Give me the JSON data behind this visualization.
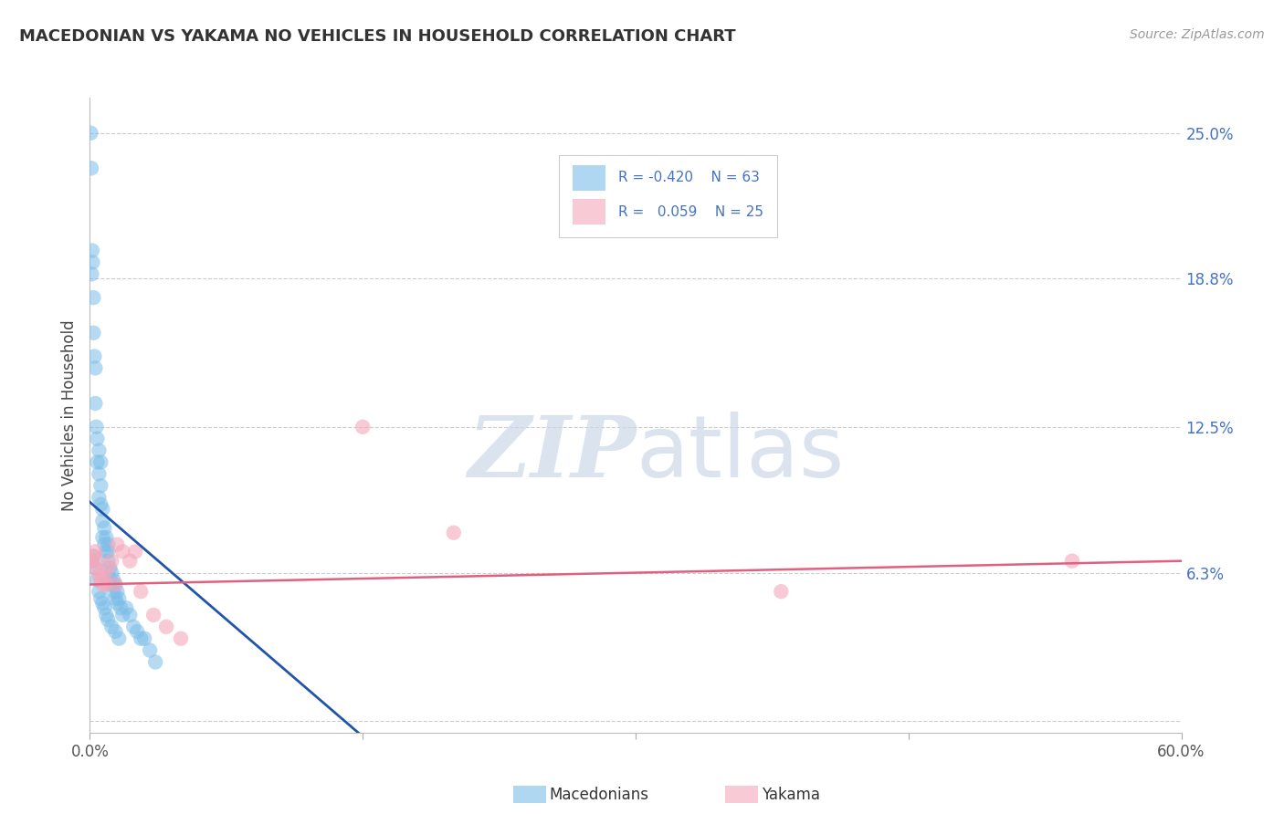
{
  "title": "MACEDONIAN VS YAKAMA NO VEHICLES IN HOUSEHOLD CORRELATION CHART",
  "source": "Source: ZipAtlas.com",
  "ylabel": "No Vehicles in Household",
  "xlim": [
    0.0,
    0.6
  ],
  "ylim": [
    -0.005,
    0.265
  ],
  "yticks": [
    0.0,
    0.063,
    0.125,
    0.188,
    0.25
  ],
  "ytick_labels": [
    "",
    "6.3%",
    "12.5%",
    "18.8%",
    "25.0%"
  ],
  "xticks": [
    0.0,
    0.15,
    0.3,
    0.45,
    0.6
  ],
  "xtick_labels": [
    "0.0%",
    "",
    "",
    "",
    "60.0%"
  ],
  "blue_color": "#7bbde8",
  "pink_color": "#f4a8bc",
  "blue_line_color": "#2255aa",
  "pink_line_color": "#e06080",
  "label_color": "#4472c4",
  "watermark_color": "#ccd8e8",
  "blue_x": [
    0.0005,
    0.0008,
    0.001,
    0.0012,
    0.0015,
    0.002,
    0.002,
    0.0025,
    0.003,
    0.003,
    0.0035,
    0.004,
    0.004,
    0.005,
    0.005,
    0.005,
    0.006,
    0.006,
    0.006,
    0.007,
    0.007,
    0.007,
    0.008,
    0.008,
    0.009,
    0.009,
    0.01,
    0.01,
    0.01,
    0.011,
    0.011,
    0.012,
    0.012,
    0.013,
    0.013,
    0.014,
    0.014,
    0.015,
    0.015,
    0.016,
    0.017,
    0.018,
    0.02,
    0.022,
    0.024,
    0.026,
    0.028,
    0.03,
    0.033,
    0.036,
    0.001,
    0.002,
    0.003,
    0.004,
    0.005,
    0.006,
    0.007,
    0.008,
    0.009,
    0.01,
    0.012,
    0.014,
    0.016
  ],
  "blue_y": [
    0.25,
    0.235,
    0.19,
    0.2,
    0.195,
    0.18,
    0.165,
    0.155,
    0.15,
    0.135,
    0.125,
    0.12,
    0.11,
    0.115,
    0.105,
    0.095,
    0.11,
    0.1,
    0.092,
    0.09,
    0.085,
    0.078,
    0.082,
    0.075,
    0.078,
    0.072,
    0.075,
    0.068,
    0.072,
    0.065,
    0.06,
    0.063,
    0.058,
    0.06,
    0.055,
    0.058,
    0.052,
    0.055,
    0.05,
    0.052,
    0.048,
    0.045,
    0.048,
    0.045,
    0.04,
    0.038,
    0.035,
    0.035,
    0.03,
    0.025,
    0.068,
    0.07,
    0.065,
    0.06,
    0.055,
    0.052,
    0.05,
    0.048,
    0.045,
    0.043,
    0.04,
    0.038,
    0.035
  ],
  "pink_x": [
    0.001,
    0.002,
    0.003,
    0.003,
    0.004,
    0.005,
    0.006,
    0.007,
    0.008,
    0.009,
    0.01,
    0.012,
    0.014,
    0.015,
    0.018,
    0.022,
    0.025,
    0.028,
    0.035,
    0.042,
    0.05,
    0.15,
    0.2,
    0.38,
    0.54
  ],
  "pink_y": [
    0.068,
    0.07,
    0.065,
    0.072,
    0.068,
    0.062,
    0.06,
    0.058,
    0.062,
    0.058,
    0.065,
    0.068,
    0.058,
    0.075,
    0.072,
    0.068,
    0.072,
    0.055,
    0.045,
    0.04,
    0.035,
    0.125,
    0.08,
    0.055,
    0.068
  ],
  "blue_trend_x": [
    0.0,
    0.155
  ],
  "blue_trend_y": [
    0.093,
    -0.01
  ],
  "pink_trend_x": [
    0.0,
    0.6
  ],
  "pink_trend_y": [
    0.058,
    0.068
  ]
}
